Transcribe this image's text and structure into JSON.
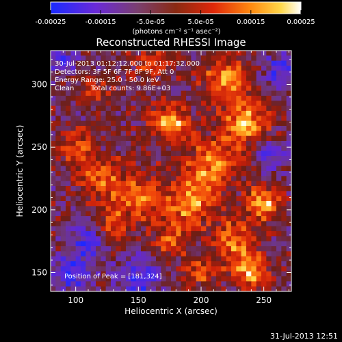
{
  "colorbar": {
    "tick_labels": [
      "-0.00025",
      "-0.00015",
      "-5.0e-05",
      "5.0e-05",
      "0.00015",
      "0.00025"
    ],
    "tick_values": [
      -0.00025,
      -0.00015,
      -5e-05,
      5e-05,
      0.00015,
      0.00025
    ],
    "range": [
      -0.00025,
      0.00025
    ],
    "units_label": "(photons cm⁻² s⁻¹ asec⁻²)"
  },
  "annotations": {
    "time_range": "30-Jul-2013 01:12:12.000 to 01:17:32.000",
    "detectors": "Detectors: 3F 5F 6F 7F 8F 9F, Att 0",
    "energy": "Energy Range: 25.0 - 50.0 keV",
    "method": "Clean",
    "counts": "Total counts: 9.86E+03",
    "peak": "Position of Peak = [181,324]"
  },
  "footer": {
    "timestamp": "31-Jul-2013 12:51"
  },
  "chart_data": {
    "type": "heatmap",
    "title": "Reconstructed RHESSI Image",
    "xlabel": "Heliocentric X (arcsec)",
    "ylabel": "Heliocentric Y (arcsec)",
    "xlim": [
      80,
      272
    ],
    "ylim": [
      135,
      327
    ],
    "xticks": [
      100,
      150,
      200,
      250
    ],
    "yticks": [
      150,
      200,
      250,
      300
    ],
    "xtick_labels": [
      "100",
      "150",
      "200",
      "250"
    ],
    "ytick_labels": [
      "150",
      "200",
      "250",
      "300"
    ],
    "peak": {
      "x": 181,
      "y": 324
    },
    "grid": false,
    "colormap": "red-temperature",
    "note": "approximate reconstructed intensity field; blobs listed as approximate features",
    "features": [
      {
        "x": 175,
        "y": 270,
        "r": 10,
        "amp": 1.0
      },
      {
        "x": 220,
        "y": 305,
        "r": 12,
        "amp": 0.9
      },
      {
        "x": 235,
        "y": 270,
        "r": 14,
        "amp": 0.85
      },
      {
        "x": 250,
        "y": 205,
        "r": 10,
        "amp": 0.9
      },
      {
        "x": 225,
        "y": 175,
        "r": 12,
        "amp": 0.8
      },
      {
        "x": 240,
        "y": 150,
        "r": 10,
        "amp": 0.9
      },
      {
        "x": 210,
        "y": 235,
        "r": 15,
        "amp": 0.8
      },
      {
        "x": 190,
        "y": 205,
        "r": 14,
        "amp": 0.75
      },
      {
        "x": 150,
        "y": 210,
        "r": 14,
        "amp": 0.7
      },
      {
        "x": 120,
        "y": 225,
        "r": 12,
        "amp": 0.7
      },
      {
        "x": 100,
        "y": 250,
        "r": 10,
        "amp": 0.6
      },
      {
        "x": 130,
        "y": 185,
        "r": 10,
        "amp": 0.55
      },
      {
        "x": 175,
        "y": 175,
        "r": 10,
        "amp": 0.55
      },
      {
        "x": 200,
        "y": 150,
        "r": 10,
        "amp": 0.5
      },
      {
        "x": 160,
        "y": 315,
        "r": 10,
        "amp": 0.55
      },
      {
        "x": 115,
        "y": 295,
        "r": 8,
        "amp": 0.5
      },
      {
        "x": 95,
        "y": 150,
        "r": 10,
        "amp": -0.7
      },
      {
        "x": 110,
        "y": 175,
        "r": 10,
        "amp": -0.6
      },
      {
        "x": 150,
        "y": 145,
        "r": 12,
        "amp": -0.6
      },
      {
        "x": 255,
        "y": 245,
        "r": 10,
        "amp": -0.5
      },
      {
        "x": 265,
        "y": 310,
        "r": 10,
        "amp": -0.6
      },
      {
        "x": 90,
        "y": 320,
        "r": 8,
        "amp": -0.5
      }
    ]
  }
}
